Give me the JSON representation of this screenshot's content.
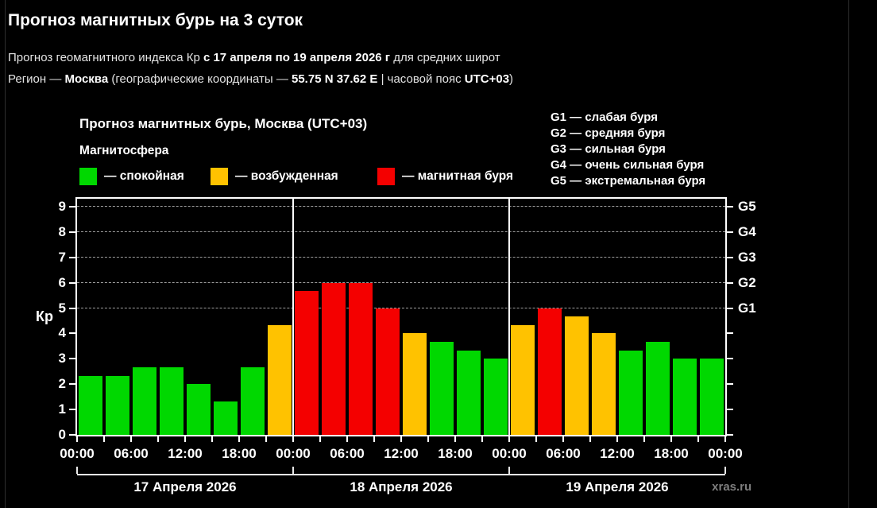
{
  "header": {
    "title": "Прогноз магнитных бурь на 3 суток",
    "subtitle": {
      "prefix": "Прогноз геомагнитного индекса Кр ",
      "bold": "с 17 апреля по 19 апреля 2026 г",
      "suffix": " для средних широт"
    },
    "region": {
      "prefix": "Регион — ",
      "city": "Москва",
      "mid1": " (географические координаты — ",
      "coords": "55.75 N 37.62 E",
      "mid2": " | часовой пояс ",
      "timezone": "UTC+03",
      "suffix": ")"
    }
  },
  "chart": {
    "title": "Прогноз магнитных бурь, Москва (UTC+03)",
    "legend_title": "Магнитосфера",
    "legend": [
      {
        "key": "green",
        "label": "— спокойная",
        "color": "#00d800"
      },
      {
        "key": "orange",
        "label": "— возбужденная",
        "color": "#ffc200"
      },
      {
        "key": "red",
        "label": "— магнитная буря",
        "color": "#f40000"
      }
    ],
    "g_legend": [
      "G1 — слабая буря",
      "G2 — средняя буря",
      "G3 — сильная буря",
      "G4 — очень сильная буря",
      "G5 — экстремальная буря"
    ],
    "ylabel": "Кр",
    "watermark": "xras.ru"
  },
  "chart_data": {
    "type": "bar",
    "title": "Прогноз магнитных бурь, Москва (UTC+03)",
    "ylabel": "Кр",
    "ylim": [
      0,
      9.31
    ],
    "yticks": [
      0,
      1,
      2,
      3,
      4,
      5,
      6,
      7,
      8,
      9
    ],
    "gridlines_at": [
      5,
      6,
      7,
      8,
      9
    ],
    "right_axis": [
      {
        "kp": 5,
        "label": "G1"
      },
      {
        "kp": 6,
        "label": "G2"
      },
      {
        "kp": 7,
        "label": "G3"
      },
      {
        "kp": 8,
        "label": "G4"
      },
      {
        "kp": 9,
        "label": "G5"
      }
    ],
    "bar_interval_hours": 3,
    "x_label_interval_hours": 6,
    "x_labels": [
      "00:00",
      "06:00",
      "12:00",
      "18:00",
      "00:00",
      "06:00",
      "12:00",
      "18:00",
      "00:00",
      "06:00",
      "12:00",
      "18:00",
      "00:00"
    ],
    "series_colors": {
      "green": "#00d800",
      "orange": "#ffc200",
      "red": "#f40000"
    },
    "level_meaning": {
      "green": "спокойная",
      "orange": "возбужденная",
      "red": "магнитная буря"
    },
    "days": [
      {
        "date": "17 Апреля 2026",
        "values": [
          2.33,
          2.33,
          2.67,
          2.67,
          2.0,
          1.33,
          2.67,
          4.33
        ],
        "levels": [
          "green",
          "green",
          "green",
          "green",
          "green",
          "green",
          "green",
          "orange"
        ]
      },
      {
        "date": "18 Апреля 2026",
        "values": [
          5.67,
          6.0,
          6.0,
          5.0,
          4.0,
          3.67,
          3.33,
          3.0
        ],
        "levels": [
          "red",
          "red",
          "red",
          "red",
          "orange",
          "green",
          "green",
          "green"
        ]
      },
      {
        "date": "19 Апреля 2026",
        "values": [
          4.33,
          5.0,
          4.67,
          4.0,
          3.33,
          3.67,
          3.0,
          3.0
        ],
        "levels": [
          "orange",
          "red",
          "orange",
          "orange",
          "green",
          "green",
          "green",
          "green"
        ]
      }
    ]
  }
}
